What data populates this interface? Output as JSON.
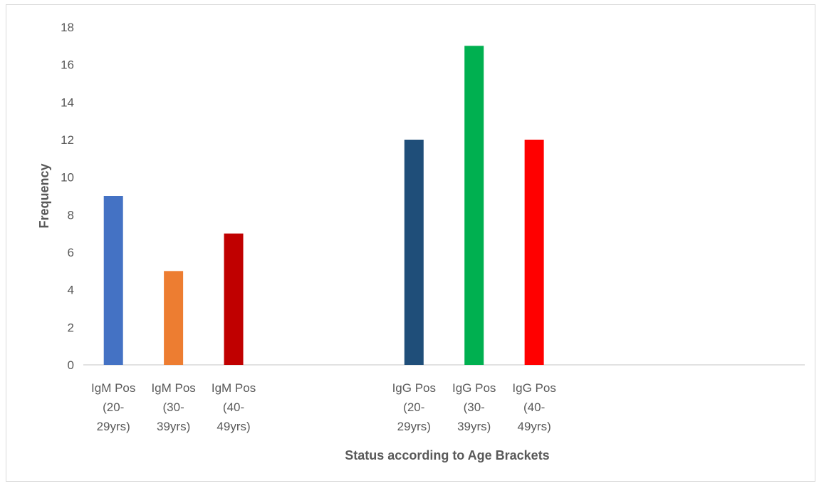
{
  "chart_data": {
    "type": "bar",
    "title": "",
    "xlabel": "Status according to Age Brackets",
    "ylabel": "Frequency",
    "ylim": [
      0,
      18
    ],
    "yticks": [
      0,
      2,
      4,
      6,
      8,
      10,
      12,
      14,
      16,
      18
    ],
    "grid": false,
    "legend": "none",
    "categories": [
      {
        "lines": [
          "IgM Pos",
          "(20-",
          "29yrs)"
        ]
      },
      {
        "lines": [
          "IgM Pos",
          "(30-",
          "39yrs)"
        ]
      },
      {
        "lines": [
          "IgM Pos",
          "(40-",
          "49yrs)"
        ]
      },
      {
        "lines": [
          "",
          "",
          ""
        ]
      },
      {
        "lines": [
          "",
          "",
          ""
        ]
      },
      {
        "lines": [
          "IgG Pos",
          "(20-",
          "29yrs)"
        ]
      },
      {
        "lines": [
          "IgG Pos",
          "(30-",
          "39yrs)"
        ]
      },
      {
        "lines": [
          "IgG Pos",
          "(40-",
          "49yrs)"
        ]
      },
      {
        "lines": [
          "",
          "",
          ""
        ]
      },
      {
        "lines": [
          "",
          "",
          ""
        ]
      },
      {
        "lines": [
          "",
          "",
          ""
        ]
      },
      {
        "lines": [
          "",
          "",
          ""
        ]
      }
    ],
    "values": [
      9,
      5,
      7,
      null,
      null,
      12,
      17,
      12,
      null,
      null,
      null,
      null
    ],
    "colors": [
      "#4472C4",
      "#ED7D31",
      "#C00000",
      null,
      null,
      "#1F4E79",
      "#00B050",
      "#FF0000",
      null,
      null,
      null,
      null
    ]
  }
}
